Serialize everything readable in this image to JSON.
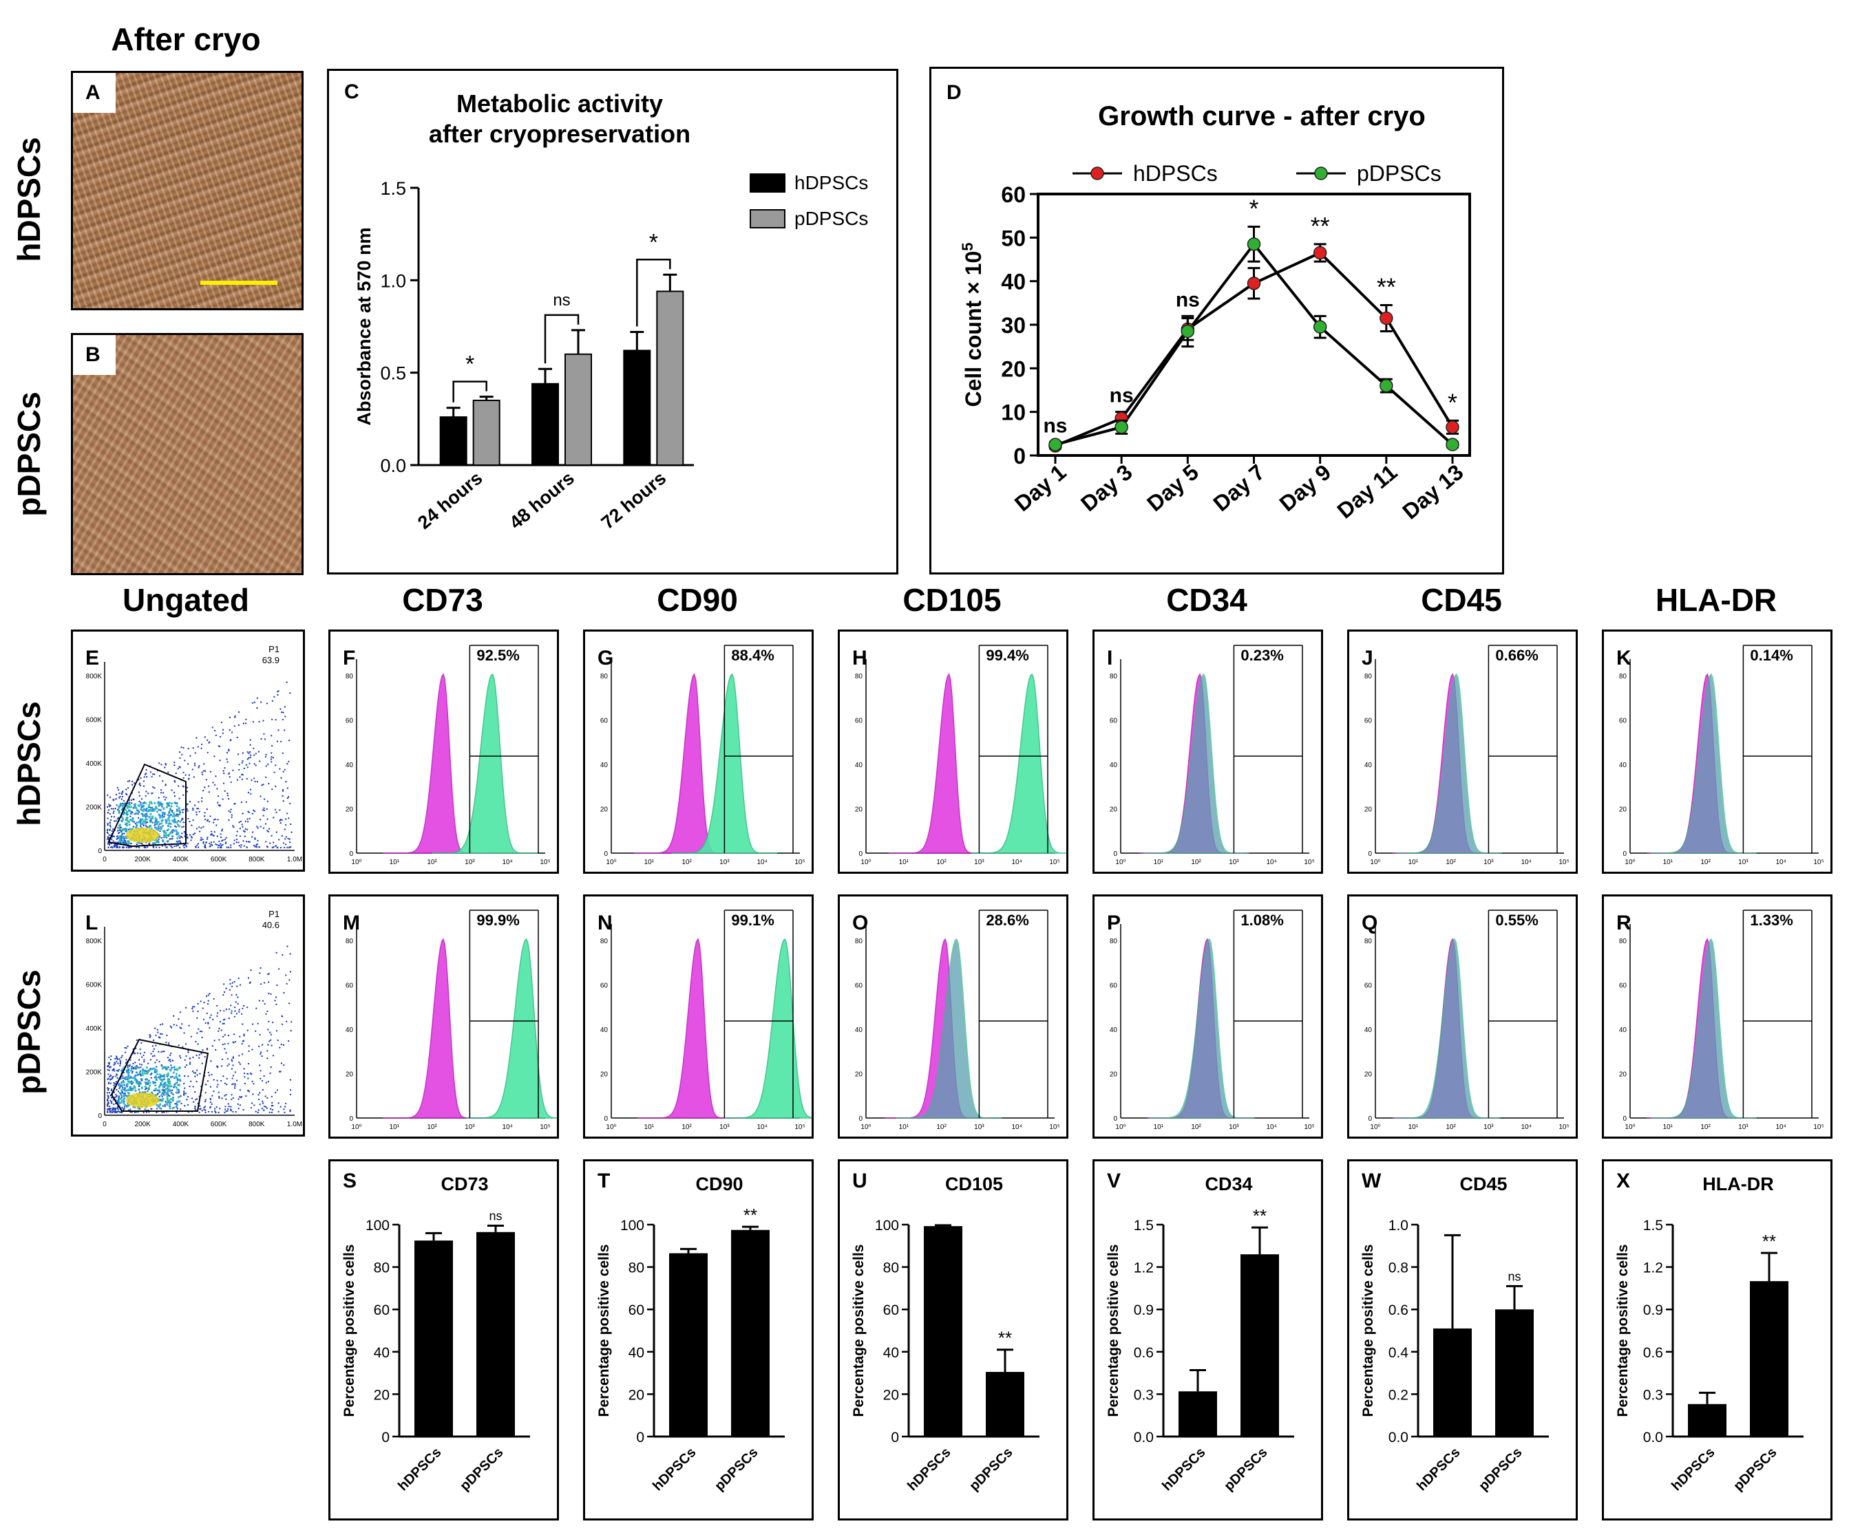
{
  "headers": {
    "after_cryo": "After cryo",
    "ungated": "Ungated"
  },
  "row_labels": {
    "hdpscs": "hDPSCs",
    "pdpscs": "pDPSCs"
  },
  "micro": [
    {
      "letter": "A"
    },
    {
      "letter": "B"
    }
  ],
  "scatter": [
    {
      "letter": "E",
      "gate_name": "P1",
      "gate_value": "63.9",
      "xticks": [
        "0",
        "200K",
        "400K",
        "600K",
        "800K",
        "1.0M"
      ],
      "yticks": [
        "800K",
        "600K",
        "400K",
        "200K",
        "0"
      ]
    },
    {
      "letter": "L",
      "gate_name": "P1",
      "gate_value": "40.6",
      "xticks": [
        "0",
        "200K",
        "400K",
        "600K",
        "800K",
        "1.0M"
      ],
      "yticks": [
        "800K",
        "600K",
        "400K",
        "200K",
        "0"
      ]
    }
  ],
  "markers": [
    "CD73",
    "CD90",
    "CD105",
    "CD34",
    "CD45",
    "HLA-DR"
  ],
  "hist_xticks": [
    "10⁰",
    "10¹",
    "10²",
    "10³",
    "10⁴",
    "10⁵"
  ],
  "hist_yticks": [
    "80",
    "60",
    "40",
    "20",
    "0"
  ],
  "colors": {
    "control": "#e040e0",
    "marker": "#4ee6a6",
    "overlap": "#5aa0b0",
    "red": "#e02020",
    "green": "#30b030",
    "yellow": "#ffee00",
    "bar_dark": "#000000",
    "bar_grey": "#9a9a9a"
  },
  "chart_data": [
    {
      "id": "C",
      "letter": "C",
      "type": "bar",
      "title": "Metabolic activity",
      "subtitle": "after cryopreservation",
      "ylabel": "Absorbance at 570 nm",
      "ylim": [
        0,
        1.5
      ],
      "yticks": [
        "0.0",
        "0.5",
        "1.0",
        "1.5"
      ],
      "categories": [
        "24 hours",
        "48 hours",
        "72 hours"
      ],
      "series": [
        {
          "name": "hDPSCs",
          "values": [
            0.26,
            0.44,
            0.62
          ],
          "errors": [
            0.05,
            0.08,
            0.1
          ]
        },
        {
          "name": "pDPSCs",
          "values": [
            0.35,
            0.6,
            0.94
          ],
          "errors": [
            0.02,
            0.13,
            0.09
          ]
        }
      ],
      "annotations": [
        "*",
        "ns",
        "*"
      ]
    },
    {
      "id": "D",
      "letter": "D",
      "type": "line",
      "title": "Growth curve - after cryo",
      "ylabel": "Cell count × 10",
      "ylabel_sup": "5",
      "ylim": [
        0,
        60
      ],
      "yticks": [
        "0",
        "10",
        "20",
        "30",
        "40",
        "50",
        "60"
      ],
      "categories": [
        "Day 1",
        "Day 3",
        "Day 5",
        "Day 7",
        "Day 9",
        "Day 11",
        "Day 13"
      ],
      "series": [
        {
          "name": "hDPSCs",
          "values": [
            2.2,
            8.5,
            29,
            39.5,
            46.5,
            31.5,
            6.5
          ],
          "errors": [
            0.6,
            1.5,
            2.5,
            3.5,
            2,
            3,
            1.5
          ]
        },
        {
          "name": "pDPSCs",
          "values": [
            2.5,
            6.5,
            28.5,
            48.5,
            29.5,
            16,
            2.5
          ],
          "errors": [
            0.6,
            1.5,
            3.5,
            4,
            2.5,
            1.5,
            0.6
          ]
        }
      ],
      "annotations": [
        "ns",
        "ns",
        "ns",
        "*",
        "**",
        "**",
        "*"
      ]
    },
    {
      "id": "F",
      "letter": "F",
      "type": "histogram",
      "marker": "CD73",
      "sample": "hDPSCs",
      "percent": "92.5%",
      "control_peak_log": 2.3,
      "marker_peak_log": 3.6
    },
    {
      "id": "G",
      "letter": "G",
      "type": "histogram",
      "marker": "CD90",
      "sample": "hDPSCs",
      "percent": "88.4%",
      "control_peak_log": 2.2,
      "marker_peak_log": 3.2
    },
    {
      "id": "H",
      "letter": "H",
      "type": "histogram",
      "marker": "CD105",
      "sample": "hDPSCs",
      "percent": "99.4%",
      "control_peak_log": 2.2,
      "marker_peak_log": 4.4
    },
    {
      "id": "I",
      "letter": "I",
      "type": "histogram",
      "marker": "CD34",
      "sample": "hDPSCs",
      "percent": "0.23%",
      "control_peak_log": 2.1,
      "marker_peak_log": 2.2
    },
    {
      "id": "J",
      "letter": "J",
      "type": "histogram",
      "marker": "CD45",
      "sample": "hDPSCs",
      "percent": "0.66%",
      "control_peak_log": 2.05,
      "marker_peak_log": 2.15
    },
    {
      "id": "K",
      "letter": "K",
      "type": "histogram",
      "marker": "HLA-DR",
      "sample": "hDPSCs",
      "percent": "0.14%",
      "control_peak_log": 2.05,
      "marker_peak_log": 2.15
    },
    {
      "id": "M",
      "letter": "M",
      "type": "histogram",
      "marker": "CD73",
      "sample": "pDPSCs",
      "percent": "99.9%",
      "control_peak_log": 2.3,
      "marker_peak_log": 4.5
    },
    {
      "id": "N",
      "letter": "N",
      "type": "histogram",
      "marker": "CD90",
      "sample": "pDPSCs",
      "percent": "99.1%",
      "control_peak_log": 2.3,
      "marker_peak_log": 4.6
    },
    {
      "id": "O",
      "letter": "O",
      "type": "histogram",
      "marker": "CD105",
      "sample": "pDPSCs",
      "percent": "28.6%",
      "control_peak_log": 2.1,
      "marker_peak_log": 2.4
    },
    {
      "id": "P",
      "letter": "P",
      "type": "histogram",
      "marker": "CD34",
      "sample": "pDPSCs",
      "percent": "1.08%",
      "control_peak_log": 2.3,
      "marker_peak_log": 2.35
    },
    {
      "id": "Q",
      "letter": "Q",
      "type": "histogram",
      "marker": "CD45",
      "sample": "pDPSCs",
      "percent": "0.55%",
      "control_peak_log": 2.05,
      "marker_peak_log": 2.1
    },
    {
      "id": "R",
      "letter": "R",
      "type": "histogram",
      "marker": "HLA-DR",
      "sample": "pDPSCs",
      "percent": "1.33%",
      "control_peak_log": 2.05,
      "marker_peak_log": 2.15
    },
    {
      "id": "S",
      "letter": "S",
      "type": "bar",
      "title": "CD73",
      "ylabel": "Percentage positive cells",
      "ylim": [
        0,
        100
      ],
      "yticks": [
        "0",
        "20",
        "40",
        "60",
        "80",
        "100"
      ],
      "categories": [
        "hDPSCs",
        "pDPSCs"
      ],
      "values": [
        92.5,
        96.5
      ],
      "errors": [
        3.5,
        3
      ],
      "annotations": [
        "",
        "ns"
      ]
    },
    {
      "id": "T",
      "letter": "T",
      "type": "bar",
      "title": "CD90",
      "ylabel": "Percentage positive cells",
      "ylim": [
        0,
        100
      ],
      "yticks": [
        "0",
        "20",
        "40",
        "60",
        "80",
        "100"
      ],
      "categories": [
        "hDPSCs",
        "pDPSCs"
      ],
      "values": [
        86.5,
        97.5
      ],
      "errors": [
        2,
        1.5
      ],
      "annotations": [
        "",
        "**"
      ]
    },
    {
      "id": "U",
      "letter": "U",
      "type": "bar",
      "title": "CD105",
      "ylabel": "Percentage positive cells",
      "ylim": [
        0,
        100
      ],
      "yticks": [
        "0",
        "20",
        "40",
        "60",
        "80",
        "100"
      ],
      "categories": [
        "hDPSCs",
        "pDPSCs"
      ],
      "values": [
        99.3,
        30.5
      ],
      "errors": [
        0.4,
        10.5
      ],
      "annotations": [
        "",
        "**"
      ]
    },
    {
      "id": "V",
      "letter": "V",
      "type": "bar",
      "title": "CD34",
      "ylabel": "Percentage positive cells",
      "ylim": [
        0,
        1.5
      ],
      "yticks": [
        "0.0",
        "0.3",
        "0.6",
        "0.9",
        "1.2",
        "1.5"
      ],
      "categories": [
        "hDPSCs",
        "pDPSCs"
      ],
      "values": [
        0.32,
        1.29
      ],
      "errors": [
        0.15,
        0.19
      ],
      "annotations": [
        "",
        "**"
      ]
    },
    {
      "id": "W",
      "letter": "W",
      "type": "bar",
      "title": "CD45",
      "ylabel": "Percentage positive cells",
      "ylim": [
        0,
        1.0
      ],
      "yticks": [
        "0.0",
        "0.2",
        "0.4",
        "0.6",
        "0.8",
        "1.0"
      ],
      "categories": [
        "hDPSCs",
        "pDPSCs"
      ],
      "values": [
        0.51,
        0.6
      ],
      "errors": [
        0.44,
        0.11
      ],
      "annotations": [
        "",
        "ns"
      ]
    },
    {
      "id": "X",
      "letter": "X",
      "type": "bar",
      "title": "HLA-DR",
      "ylabel": "Percentage positive cells",
      "ylim": [
        0,
        1.5
      ],
      "yticks": [
        "0.0",
        "0.3",
        "0.6",
        "0.9",
        "1.2",
        "1.5"
      ],
      "categories": [
        "hDPSCs",
        "pDPSCs"
      ],
      "values": [
        0.23,
        1.1
      ],
      "errors": [
        0.08,
        0.2
      ],
      "annotations": [
        "",
        "**"
      ]
    }
  ]
}
